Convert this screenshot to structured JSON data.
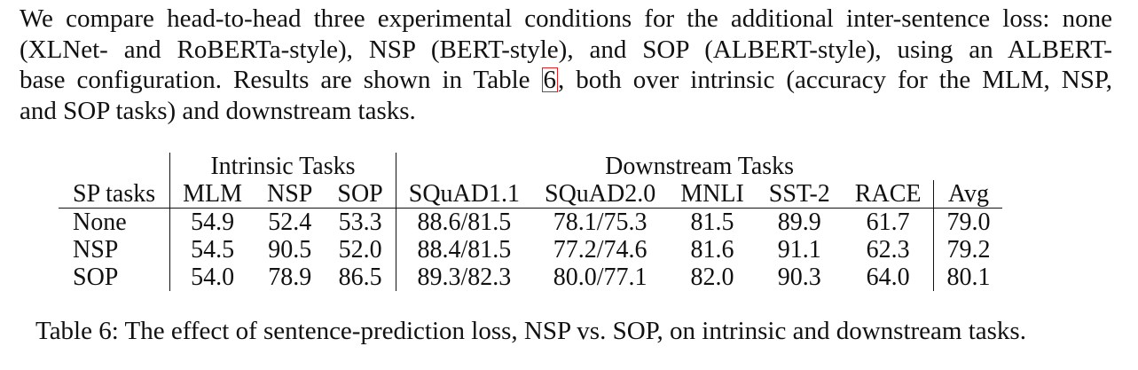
{
  "paragraph": {
    "line1": "We compare head-to-head three experimental conditions for the additional inter-sentence loss: none",
    "line2": "(XLNet- and RoBERTa-style), NSP (BERT-style), and SOP (ALBERT-style), using an ALBERT-",
    "line3_before": "base configuration. Results are shown in Table ",
    "line3_ref": "6",
    "line3_after": ", both over intrinsic (accuracy for the MLM, NSP,",
    "line4": "and SOP tasks) and downstream tasks."
  },
  "table": {
    "group_intrinsic": "Intrinsic Tasks",
    "group_downstream": "Downstream Tasks",
    "columns": [
      "SP tasks",
      "MLM",
      "NSP",
      "SOP",
      "SQuAD1.1",
      "SQuAD2.0",
      "MNLI",
      "SST-2",
      "RACE",
      "Avg"
    ],
    "rows": [
      [
        "None",
        "54.9",
        "52.4",
        "53.3",
        "88.6/81.5",
        "78.1/75.3",
        "81.5",
        "89.9",
        "61.7",
        "79.0"
      ],
      [
        "NSP",
        "54.5",
        "90.5",
        "52.0",
        "88.4/81.5",
        "77.2/74.6",
        "81.6",
        "91.1",
        "62.3",
        "79.2"
      ],
      [
        "SOP",
        "54.0",
        "78.9",
        "86.5",
        "89.3/82.3",
        "80.0/77.1",
        "82.0",
        "90.3",
        "64.0",
        "80.1"
      ]
    ],
    "bold_cells": [
      [
        1,
        7
      ],
      [
        2,
        4
      ],
      [
        2,
        5
      ],
      [
        2,
        6
      ],
      [
        2,
        8
      ],
      [
        2,
        9
      ]
    ]
  },
  "caption": "Table 6: The effect of sentence-prediction loss, NSP vs. SOP, on intrinsic and downstream tasks.",
  "colors": {
    "text": "#111111",
    "reference_box": "#e02020"
  }
}
